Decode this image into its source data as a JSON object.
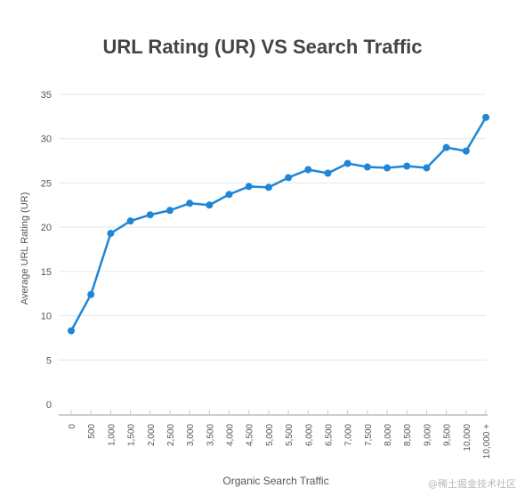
{
  "chart_data": {
    "type": "line",
    "title": "URL Rating (UR) VS Search Traffic",
    "xlabel": "Organic Search Traffic",
    "ylabel": "Average URL Rating (UR)",
    "ylim": [
      0,
      35
    ],
    "yticks": [
      0,
      5,
      10,
      15,
      20,
      25,
      30,
      35
    ],
    "grid": "horizontal",
    "categories": [
      "0",
      "500",
      "1,000",
      "1,500",
      "2,000",
      "2,500",
      "3,000",
      "3,500",
      "4,000",
      "4,500",
      "5,000",
      "5,500",
      "6,000",
      "6,500",
      "7,000",
      "7,500",
      "8,000",
      "8,500",
      "9,000",
      "9,500",
      "10,000",
      "10,000 +"
    ],
    "series": [
      {
        "values": [
          8.3,
          12.4,
          19.3,
          20.7,
          21.4,
          21.9,
          22.7,
          22.5,
          23.7,
          24.6,
          24.5,
          25.6,
          26.5,
          26.1,
          27.2,
          26.8,
          26.7,
          26.9,
          26.7,
          29.0,
          28.6,
          32.4
        ],
        "color": "#1f86d6"
      }
    ],
    "colors": {
      "line": "#1f86d6",
      "grid": "#e6e6e6",
      "axis": "#cccccc",
      "text": "#555555",
      "title": "#444444"
    }
  },
  "watermark": "@稀土掘金技术社区"
}
